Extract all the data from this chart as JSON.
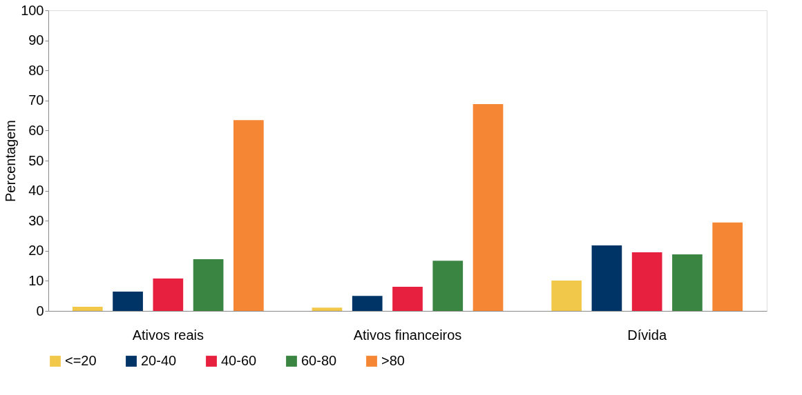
{
  "chart_data": {
    "type": "bar",
    "ylabel": "Percentagem",
    "categories": [
      "Ativos reais",
      "Ativos financeiros",
      "Dívida"
    ],
    "series": [
      {
        "name": "<=20",
        "color": "#f2c84b",
        "values": [
          1.4,
          1.1,
          10.1
        ]
      },
      {
        "name": "20-40",
        "color": "#003366",
        "values": [
          6.4,
          5.0,
          21.8
        ]
      },
      {
        "name": "40-60",
        "color": "#e8203f",
        "values": [
          10.8,
          8.0,
          19.5
        ]
      },
      {
        "name": "60-80",
        "color": "#3a8541",
        "values": [
          17.2,
          16.7,
          18.8
        ]
      },
      {
        "name": ">80",
        "color": "#f58634",
        "values": [
          63.5,
          68.8,
          29.4
        ]
      }
    ],
    "ylim": [
      0,
      100
    ],
    "yticks": [
      0,
      10,
      20,
      30,
      40,
      50,
      60,
      70,
      80,
      90,
      100
    ],
    "grid": false,
    "legend": "bottom"
  }
}
